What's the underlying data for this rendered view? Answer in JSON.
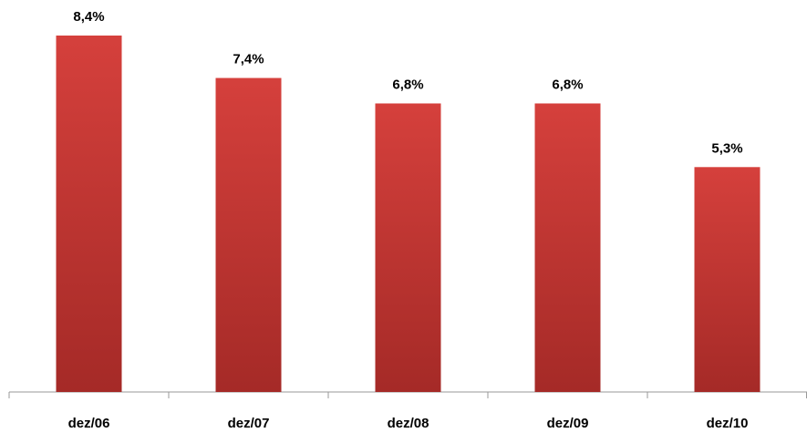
{
  "chart_data": {
    "type": "bar",
    "categories": [
      "dez/06",
      "dez/07",
      "dez/08",
      "dez/09",
      "dez/10"
    ],
    "values": [
      8.4,
      7.4,
      6.8,
      6.8,
      5.3
    ],
    "value_labels": [
      "8,4%",
      "7,4%",
      "6,8%",
      "6,8%",
      "5,3%"
    ],
    "color": "#cc3a36"
  }
}
